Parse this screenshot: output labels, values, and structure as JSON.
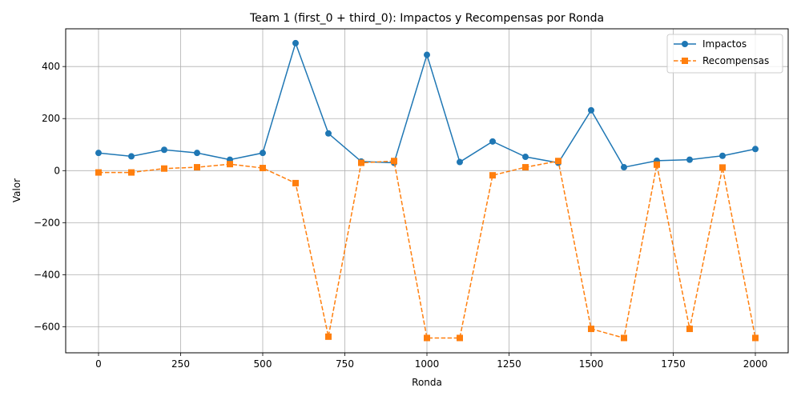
{
  "chart_data": {
    "type": "line",
    "title": "Team 1 (first_0 + third_0): Impactos y Recompensas por Ronda",
    "xlabel": "Ronda",
    "ylabel": "Valor",
    "xlim": [
      -100,
      2100
    ],
    "ylim": [
      -700,
      545
    ],
    "xticks": [
      0,
      250,
      500,
      750,
      1000,
      1250,
      1500,
      1750,
      2000
    ],
    "xtick_labels": [
      "0",
      "250",
      "500",
      "750",
      "1000",
      "1250",
      "1500",
      "1750",
      "2000"
    ],
    "yticks": [
      -600,
      -400,
      -200,
      0,
      200,
      400
    ],
    "ytick_labels": [
      "−600",
      "−400",
      "−200",
      "0",
      "200",
      "400"
    ],
    "grid": true,
    "legend": "top-right",
    "x": [
      0,
      100,
      200,
      300,
      400,
      500,
      600,
      700,
      800,
      900,
      1000,
      1100,
      1200,
      1300,
      1400,
      1500,
      1600,
      1700,
      1800,
      1900,
      2000
    ],
    "series": [
      {
        "name": "Impactos",
        "color": "#1f77b4",
        "style": "solid",
        "marker": "circle",
        "values": [
          68,
          55,
          80,
          68,
          42,
          68,
          490,
          143,
          35,
          30,
          445,
          33,
          112,
          53,
          30,
          232,
          13,
          38,
          42,
          57,
          83
        ]
      },
      {
        "name": "Recompensas",
        "color": "#ff7f0e",
        "style": "dashed",
        "marker": "square",
        "values": [
          -7,
          -7,
          8,
          13,
          25,
          10,
          -48,
          -638,
          30,
          37,
          -643,
          -643,
          -18,
          13,
          37,
          -608,
          -643,
          23,
          -608,
          12,
          -643
        ]
      }
    ]
  }
}
